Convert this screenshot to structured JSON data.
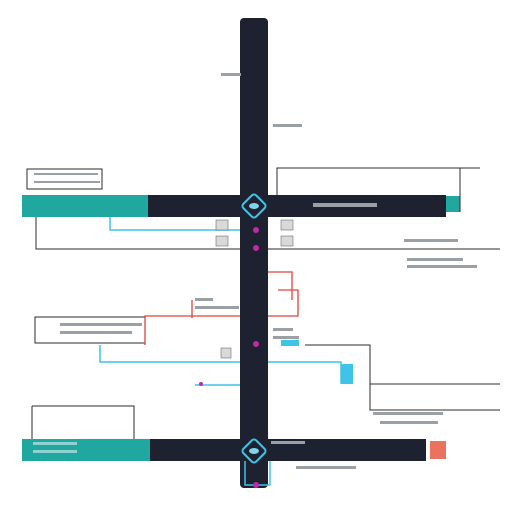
{
  "palette": {
    "road": "#1e2230",
    "teal": "#1fa7a0",
    "cyan": "#3fc3e6",
    "red": "#e0413c",
    "magenta": "#c02aa8",
    "light_cyan": "#7fd4ec",
    "orange": "#e9735e",
    "line": "#2b2b2b",
    "placeholder": "#9aa0a6"
  },
  "diagram": {
    "labels": {},
    "icons": {
      "upper_junction": "crossroad-diamond-icon",
      "lower_junction": "crossroad-diamond-icon"
    }
  }
}
